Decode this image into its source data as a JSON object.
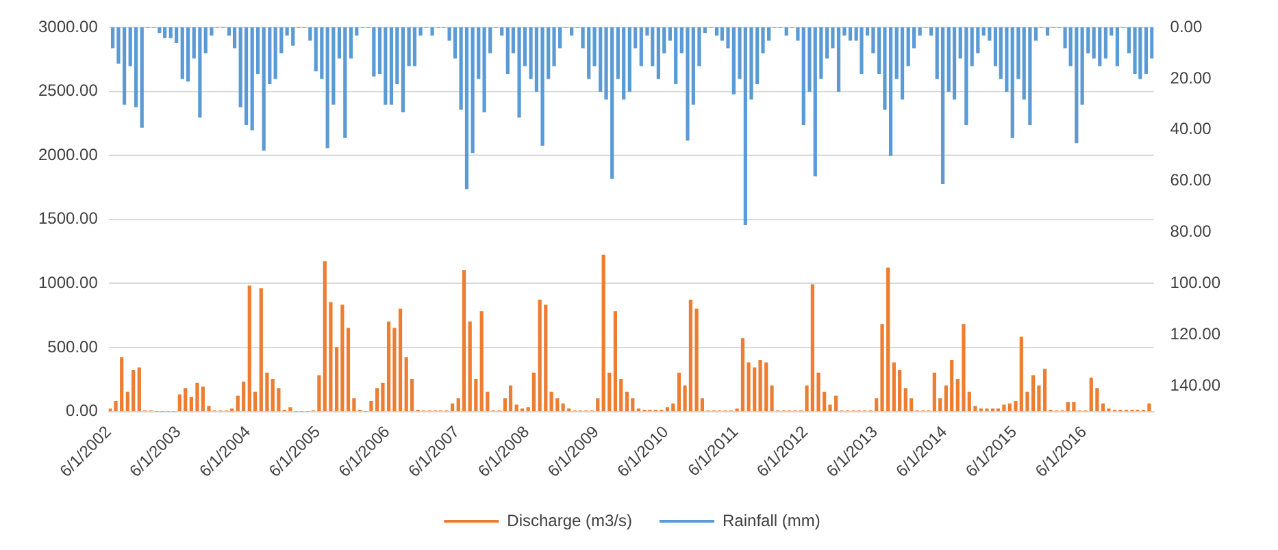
{
  "chart_data": {
    "type": "bar",
    "grid": "y",
    "legend": "bottom",
    "x": [
      "2002-06-15",
      "2002-07-15",
      "2002-08-15",
      "2002-09-15",
      "2002-10-15",
      "2002-11-15",
      "2002-12-15",
      "2003-01-15",
      "2003-02-15",
      "2003-03-15",
      "2003-04-15",
      "2003-05-15",
      "2003-06-15",
      "2003-07-15",
      "2003-08-15",
      "2003-09-15",
      "2003-10-15",
      "2003-11-15",
      "2003-12-15",
      "2004-01-15",
      "2004-02-15",
      "2004-03-15",
      "2004-04-15",
      "2004-05-15",
      "2004-06-15",
      "2004-07-15",
      "2004-08-15",
      "2004-09-15",
      "2004-10-15",
      "2004-11-15",
      "2004-12-15",
      "2005-01-15",
      "2005-02-15",
      "2005-03-15",
      "2005-04-15",
      "2005-05-15",
      "2005-06-15",
      "2005-07-15",
      "2005-08-15",
      "2005-09-15",
      "2005-10-15",
      "2005-11-15",
      "2005-12-15",
      "2006-01-15",
      "2006-02-15",
      "2006-03-15",
      "2006-04-15",
      "2006-05-15",
      "2006-06-15",
      "2006-07-15",
      "2006-08-15",
      "2006-09-15",
      "2006-10-15",
      "2006-11-15",
      "2006-12-15",
      "2007-01-15",
      "2007-02-15",
      "2007-03-15",
      "2007-04-15",
      "2007-05-15",
      "2007-06-15",
      "2007-07-15",
      "2007-08-15",
      "2007-09-15",
      "2007-10-15",
      "2007-11-15",
      "2007-12-15",
      "2008-01-15",
      "2008-02-15",
      "2008-03-15",
      "2008-04-15",
      "2008-05-15",
      "2008-06-15",
      "2008-07-15",
      "2008-08-15",
      "2008-09-15",
      "2008-10-15",
      "2008-11-15",
      "2008-12-15",
      "2009-01-15",
      "2009-02-15",
      "2009-03-15",
      "2009-04-15",
      "2009-05-15",
      "2009-06-15",
      "2009-07-15",
      "2009-08-15",
      "2009-09-15",
      "2009-10-15",
      "2009-11-15",
      "2009-12-15",
      "2010-01-15",
      "2010-02-15",
      "2010-03-15",
      "2010-04-15",
      "2010-05-15",
      "2010-06-15",
      "2010-07-15",
      "2010-08-15",
      "2010-09-15",
      "2010-10-15",
      "2010-11-15",
      "2010-12-15",
      "2011-01-15",
      "2011-02-15",
      "2011-03-15",
      "2011-04-15",
      "2011-05-15",
      "2011-06-15",
      "2011-07-15",
      "2011-08-15",
      "2011-09-15",
      "2011-10-15",
      "2011-11-15",
      "2011-12-15",
      "2012-01-15",
      "2012-02-15",
      "2012-03-15",
      "2012-04-15",
      "2012-05-15",
      "2012-06-15",
      "2012-07-15",
      "2012-08-15",
      "2012-09-15",
      "2012-10-15",
      "2012-11-15",
      "2012-12-15",
      "2013-01-15",
      "2013-02-15",
      "2013-03-15",
      "2013-04-15",
      "2013-05-15",
      "2013-06-15",
      "2013-07-15",
      "2013-08-15",
      "2013-09-15",
      "2013-10-15",
      "2013-11-15",
      "2013-12-15",
      "2014-01-15",
      "2014-02-15",
      "2014-03-15",
      "2014-04-15",
      "2014-05-15",
      "2014-06-15",
      "2014-07-15",
      "2014-08-15",
      "2014-09-15",
      "2014-10-15",
      "2014-11-15",
      "2014-12-15",
      "2015-01-15",
      "2015-02-15",
      "2015-03-15",
      "2015-04-15",
      "2015-05-15",
      "2015-06-15",
      "2015-07-15",
      "2015-08-15",
      "2015-09-15",
      "2015-10-15",
      "2015-11-15",
      "2015-12-15",
      "2016-01-15",
      "2016-02-15",
      "2016-03-15",
      "2016-04-15",
      "2016-05-15",
      "2016-06-15",
      "2016-07-15",
      "2016-08-15",
      "2016-09-15",
      "2016-10-15",
      "2016-11-15",
      "2016-12-15",
      "2017-01-15",
      "2017-02-15",
      "2017-03-15",
      "2017-04-15",
      "2017-05-15"
    ],
    "xlim": [
      "2002-06-01",
      "2017-06-01"
    ],
    "xticks": [
      {
        "value": "2002-06-01",
        "label": "6/1/2002"
      },
      {
        "value": "2003-06-01",
        "label": "6/1/2003"
      },
      {
        "value": "2004-06-01",
        "label": "6/1/2004"
      },
      {
        "value": "2005-06-01",
        "label": "6/1/2005"
      },
      {
        "value": "2006-06-01",
        "label": "6/1/2006"
      },
      {
        "value": "2007-06-01",
        "label": "6/1/2007"
      },
      {
        "value": "2008-06-01",
        "label": "6/1/2008"
      },
      {
        "value": "2009-06-01",
        "label": "6/1/2009"
      },
      {
        "value": "2010-06-01",
        "label": "6/1/2010"
      },
      {
        "value": "2011-06-01",
        "label": "6/1/2011"
      },
      {
        "value": "2012-06-01",
        "label": "6/1/2012"
      },
      {
        "value": "2013-06-01",
        "label": "6/1/2013"
      },
      {
        "value": "2014-06-01",
        "label": "6/1/2014"
      },
      {
        "value": "2015-06-01",
        "label": "6/1/2015"
      },
      {
        "value": "2016-06-01",
        "label": "6/1/2016"
      }
    ],
    "ylim": [
      0,
      3000
    ],
    "yticks": [
      {
        "value": 0,
        "label": "0.00"
      },
      {
        "value": 500,
        "label": "500.00"
      },
      {
        "value": 1000,
        "label": "1000.00"
      },
      {
        "value": 1500,
        "label": "1500.00"
      },
      {
        "value": 2000,
        "label": "2000.00"
      },
      {
        "value": 2500,
        "label": "2500.00"
      },
      {
        "value": 3000,
        "label": "3000.00"
      }
    ],
    "y2lim": [
      150,
      0
    ],
    "y2ticks": [
      {
        "value": 0,
        "label": "0.00"
      },
      {
        "value": 20,
        "label": "20.00"
      },
      {
        "value": 40,
        "label": "40.00"
      },
      {
        "value": 60,
        "label": "60.00"
      },
      {
        "value": 80,
        "label": "80.00"
      },
      {
        "value": 100,
        "label": "100.00"
      },
      {
        "value": 120,
        "label": "120.00"
      },
      {
        "value": 140,
        "label": "140.00"
      }
    ],
    "series": [
      {
        "name": "Discharge (m3/s)",
        "color": "#ed7d31",
        "values": [
          20,
          80,
          420,
          150,
          320,
          340,
          5,
          5,
          0,
          0,
          0,
          0,
          130,
          180,
          110,
          220,
          190,
          40,
          5,
          5,
          5,
          20,
          120,
          230,
          980,
          150,
          960,
          300,
          250,
          180,
          10,
          30,
          0,
          0,
          0,
          5,
          280,
          1170,
          850,
          500,
          830,
          650,
          100,
          10,
          0,
          80,
          180,
          220,
          700,
          650,
          800,
          420,
          250,
          10,
          5,
          5,
          5,
          5,
          5,
          60,
          100,
          1100,
          700,
          250,
          780,
          150,
          5,
          5,
          100,
          200,
          50,
          20,
          30,
          300,
          870,
          830,
          150,
          100,
          60,
          20,
          5,
          5,
          5,
          5,
          100,
          1220,
          300,
          780,
          250,
          150,
          100,
          20,
          10,
          10,
          10,
          10,
          30,
          60,
          300,
          200,
          870,
          800,
          100,
          5,
          5,
          5,
          5,
          5,
          20,
          570,
          380,
          340,
          400,
          380,
          200,
          5,
          5,
          5,
          5,
          5,
          200,
          990,
          300,
          150,
          50,
          120,
          5,
          5,
          5,
          5,
          5,
          5,
          100,
          680,
          1120,
          380,
          320,
          180,
          100,
          5,
          5,
          5,
          300,
          100,
          200,
          400,
          250,
          680,
          150,
          40,
          20,
          20,
          20,
          20,
          50,
          60,
          80,
          580,
          150,
          280,
          200,
          330,
          10,
          5,
          5,
          70,
          70,
          5,
          5,
          260,
          180,
          60,
          20,
          10,
          10,
          10,
          10,
          10,
          10,
          60
        ]
      },
      {
        "name": "Rainfall (mm)",
        "color": "#5b9bd5",
        "axis": "y2",
        "values": [
          8,
          14,
          30,
          15,
          31,
          39,
          0,
          0,
          2,
          4,
          4,
          6,
          20,
          21,
          12,
          35,
          10,
          3,
          0,
          0,
          3,
          8,
          31,
          38,
          40,
          18,
          48,
          22,
          20,
          10,
          3,
          7,
          0,
          0,
          5,
          17,
          20,
          47,
          30,
          12,
          43,
          12,
          3,
          0,
          0,
          19,
          18,
          30,
          30,
          22,
          33,
          15,
          15,
          3,
          0,
          3,
          0,
          0,
          5,
          12,
          32,
          63,
          49,
          20,
          33,
          10,
          0,
          3,
          18,
          10,
          35,
          15,
          20,
          25,
          46,
          20,
          15,
          8,
          0,
          3,
          0,
          8,
          20,
          15,
          25,
          28,
          59,
          20,
          28,
          25,
          8,
          15,
          3,
          15,
          20,
          10,
          5,
          22,
          10,
          44,
          30,
          15,
          2,
          0,
          3,
          5,
          8,
          26,
          20,
          77,
          28,
          22,
          10,
          5,
          0,
          0,
          3,
          0,
          5,
          38,
          25,
          58,
          20,
          12,
          8,
          25,
          3,
          5,
          5,
          18,
          3,
          10,
          18,
          32,
          50,
          20,
          28,
          15,
          8,
          3,
          0,
          3,
          20,
          61,
          25,
          28,
          12,
          38,
          15,
          10,
          3,
          5,
          15,
          20,
          25,
          43,
          20,
          28,
          38,
          5,
          0,
          3,
          0,
          0,
          8,
          15,
          45,
          30,
          10,
          12,
          15,
          12,
          3,
          15,
          0,
          10,
          18,
          20,
          18,
          12
        ]
      }
    ]
  }
}
